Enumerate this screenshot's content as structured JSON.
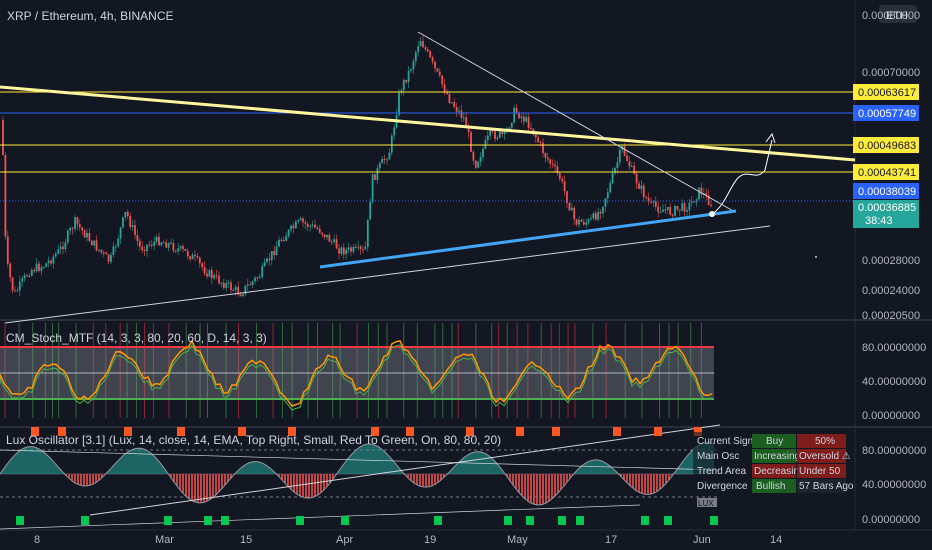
{
  "header": {
    "title": "XRP / Ethereum, 4h, BINANCE",
    "currency_button": "ETH"
  },
  "price_axis": {
    "ticks": [
      "0.00080000",
      "0.00070000",
      "0.00028000",
      "0.00024000",
      "0.00020500"
    ],
    "levels": [
      {
        "label": "0.00063617",
        "style": "yellow"
      },
      {
        "label": "0.00057749",
        "style": "blue"
      },
      {
        "label": "0.00049683",
        "style": "yellow"
      },
      {
        "label": "0.00043741",
        "style": "yellow"
      },
      {
        "label": "0.00038039",
        "style": "blue"
      },
      {
        "label": "0.00036885",
        "style": "teal"
      }
    ],
    "countdown": "38:43"
  },
  "stoch": {
    "title": "CM_Stoch_MTF (14, 3, 3, 80, 20, 60, D, 14, 3, 3)",
    "ticks": [
      "80.00000000",
      "40.00000000",
      "0.00000000"
    ]
  },
  "lux": {
    "title": "Lux Oscillator [3.1] (Lux, 14, close, 14, EMA, Top Right, Small, Red To Green, On, 80, 80, 20)",
    "ticks": [
      "80.00000000",
      "40.00000000",
      "0.00000000"
    ],
    "table": [
      {
        "label": "Current Signal",
        "v1": "Buy",
        "v2": "50%"
      },
      {
        "label": "Main Osc",
        "v1": "Increasing",
        "v2": "Oversold ⚠"
      },
      {
        "label": "Trend Area",
        "v1": "Decreasing",
        "v2": "Under 50"
      },
      {
        "label": "Divergence",
        "v1": "Bullish",
        "v2": "57 Bars Ago"
      }
    ],
    "badge": "LUX"
  },
  "time_axis": {
    "labels": [
      "8",
      "Mar",
      "15",
      "Apr",
      "19",
      "May",
      "17",
      "Jun",
      "14"
    ]
  },
  "colors": {
    "background": "#131722",
    "candle_up": "#26a69a",
    "candle_down": "#ef5350",
    "yellow_level": "#ffeb3b",
    "blue_level": "#2962ff",
    "trend_blue": "#42a5f5"
  }
}
